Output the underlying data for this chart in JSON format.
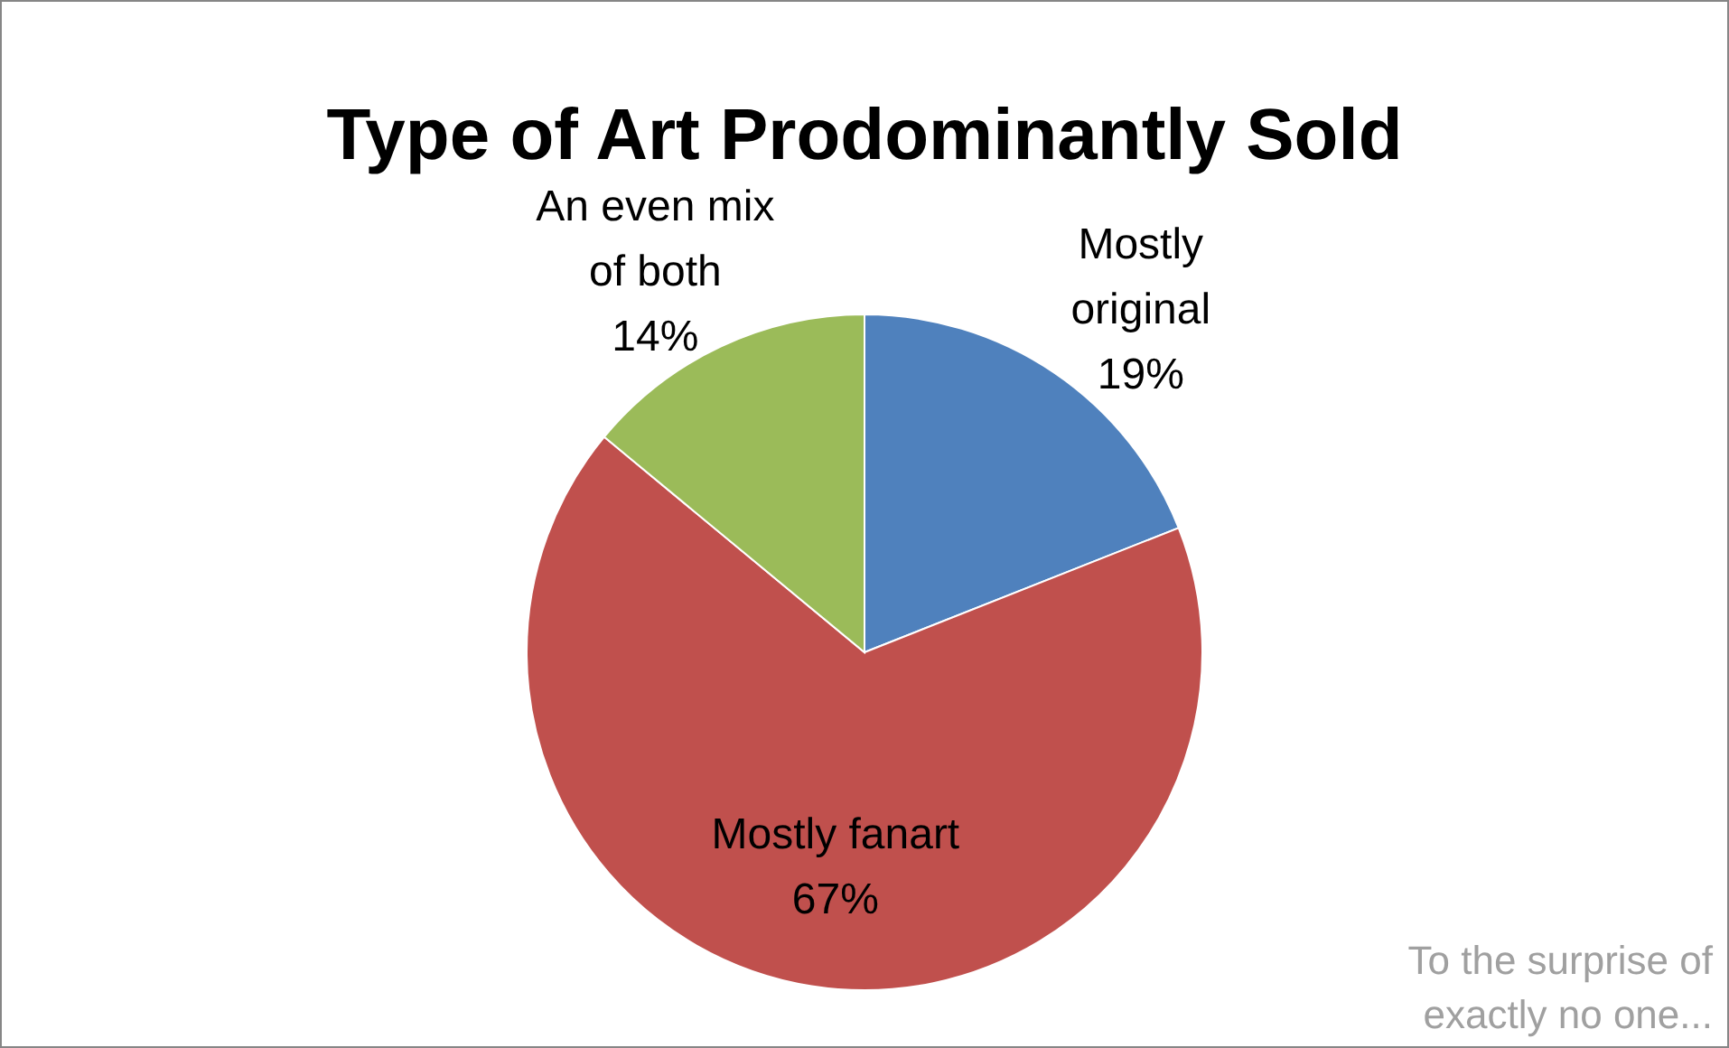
{
  "chart_data": {
    "type": "pie",
    "title": "Type of Art Prodominantly Sold",
    "categories": [
      "Mostly original",
      "Mostly fanart",
      "An even mix of both"
    ],
    "values": [
      19,
      67,
      14
    ],
    "value_labels": [
      "19%",
      "67%",
      "14%"
    ],
    "colors": [
      "#4f81bd",
      "#c0504d",
      "#9bbb59"
    ],
    "annotations": [
      "To the surprise of exactly no one..."
    ]
  }
}
